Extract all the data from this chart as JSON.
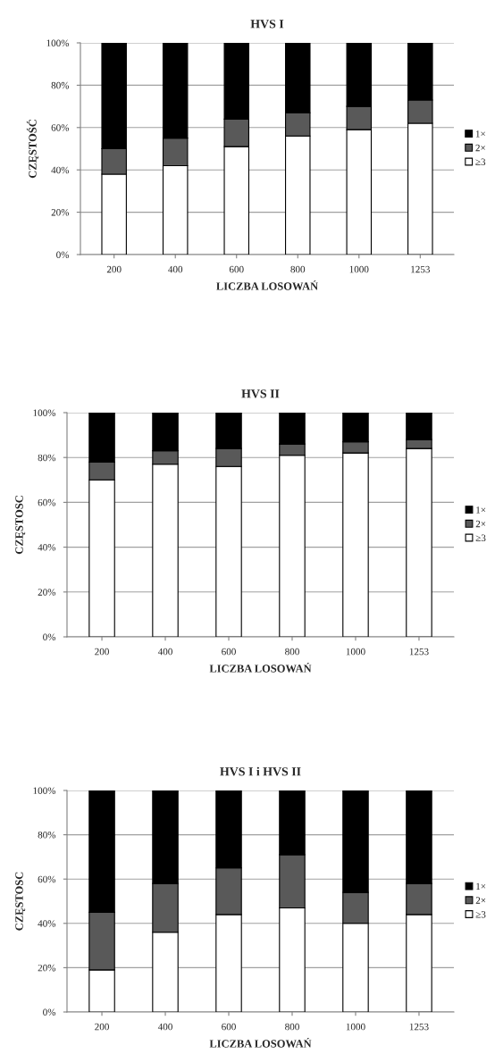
{
  "chart_data": [
    {
      "type": "bar",
      "title": "HVS I",
      "xlabel": "LICZBA LOSOWAŃ",
      "ylabel": "CZĘSTOŚĆ",
      "categories": [
        "200",
        "400",
        "600",
        "800",
        "1000",
        "1253"
      ],
      "stacked": true,
      "series": [
        {
          "name": "≥3",
          "color": "#ffffff",
          "values": [
            38,
            42,
            51,
            56,
            59,
            62
          ]
        },
        {
          "name": "2×",
          "color": "#595959",
          "values": [
            12,
            13,
            13,
            11,
            11,
            11
          ]
        },
        {
          "name": "1×",
          "color": "#000000",
          "values": [
            50,
            45,
            36,
            33,
            30,
            27
          ]
        }
      ],
      "ylim": [
        0,
        100
      ],
      "yticks": [
        {
          "value": 0,
          "label": "0%"
        },
        {
          "value": 20,
          "label": "20%"
        },
        {
          "value": 40,
          "label": "40%"
        },
        {
          "value": 60,
          "label": "60%"
        },
        {
          "value": 80,
          "label": "80%"
        },
        {
          "value": 100,
          "label": "100%"
        }
      ],
      "grid": "y",
      "legend": "right"
    },
    {
      "type": "bar",
      "title": "HVS II",
      "xlabel": "LICZBA LOSOWAŃ",
      "ylabel": "CZĘSTOSC",
      "categories": [
        "200",
        "400",
        "600",
        "800",
        "1000",
        "1253"
      ],
      "stacked": true,
      "series": [
        {
          "name": "≥3",
          "color": "#ffffff",
          "values": [
            70,
            77,
            76,
            81,
            82,
            84
          ]
        },
        {
          "name": "2×",
          "color": "#595959",
          "values": [
            8,
            6,
            8,
            5,
            5,
            4
          ]
        },
        {
          "name": "1×",
          "color": "#000000",
          "values": [
            22,
            17,
            16,
            14,
            13,
            12
          ]
        }
      ],
      "ylim": [
        0,
        100
      ],
      "yticks": [
        {
          "value": 0,
          "label": "0%"
        },
        {
          "value": 20,
          "label": "20%"
        },
        {
          "value": 40,
          "label": "40%"
        },
        {
          "value": 60,
          "label": "60%"
        },
        {
          "value": 80,
          "label": "80%"
        },
        {
          "value": 100,
          "label": "100%"
        }
      ],
      "grid": "y",
      "legend": "right"
    },
    {
      "type": "bar",
      "title": "HVS I i HVS II",
      "xlabel": "LICZBA LOSOWAŃ",
      "ylabel": "CZĘSTOSC",
      "categories": [
        "200",
        "400",
        "600",
        "800",
        "1000",
        "1253"
      ],
      "stacked": true,
      "series": [
        {
          "name": "≥3",
          "color": "#ffffff",
          "values": [
            19,
            36,
            44,
            47,
            40,
            44
          ]
        },
        {
          "name": "2×",
          "color": "#595959",
          "values": [
            26,
            22,
            21,
            24,
            14,
            14
          ]
        },
        {
          "name": "1×",
          "color": "#000000",
          "values": [
            55,
            42,
            35,
            29,
            46,
            42
          ]
        }
      ],
      "ylim": [
        0,
        100
      ],
      "yticks": [
        {
          "value": 0,
          "label": "0%"
        },
        {
          "value": 20,
          "label": "20%"
        },
        {
          "value": 40,
          "label": "40%"
        },
        {
          "value": 60,
          "label": "60%"
        },
        {
          "value": 80,
          "label": "80%"
        },
        {
          "value": 100,
          "label": "100%"
        }
      ],
      "grid": "y",
      "legend": "right"
    }
  ]
}
